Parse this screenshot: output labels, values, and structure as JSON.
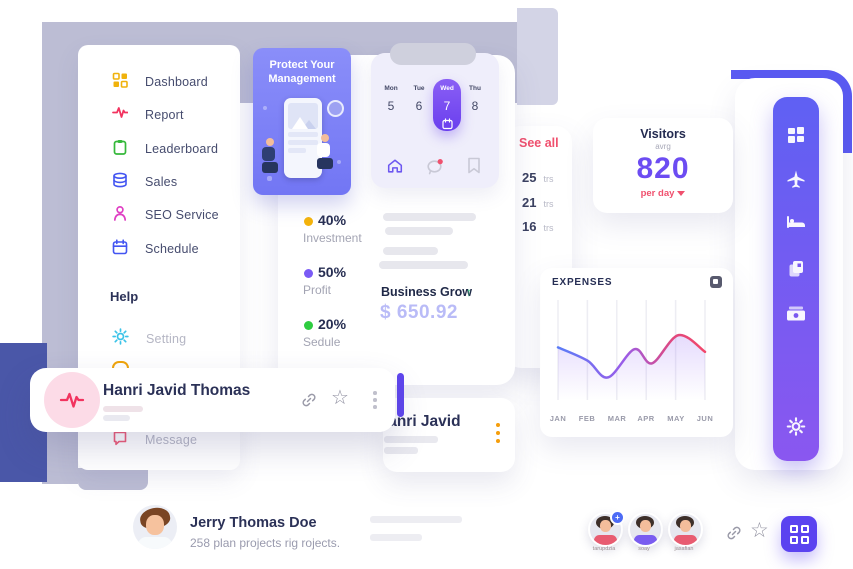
{
  "colors": {
    "accent_purple": "#6d4ef2",
    "toolbar_gradient_top": "#5f60f3",
    "toolbar_gradient_bottom": "#8a57f0",
    "promo_purple": "#8286f7",
    "red": "#f0506e",
    "navy": "#2b3157",
    "yellow": "#f5b40a",
    "green": "#2ecc40",
    "dark_blue_block": "#4a57a8",
    "background_blob": "#bcbdd4"
  },
  "icons": {
    "star_glyph": "☆",
    "plus_glyph": "+",
    "arrow_up_glyph": "↑"
  },
  "sidebar": {
    "items": [
      {
        "label": "Dashboard",
        "icon": "grid-icon",
        "color": "#f0b20c"
      },
      {
        "label": "Report",
        "icon": "pulse-icon",
        "color": "#f2335f"
      },
      {
        "label": "Leaderboard",
        "icon": "clipboard-icon",
        "color": "#35b83a"
      },
      {
        "label": "Sales",
        "icon": "database-icon",
        "color": "#4355f2"
      },
      {
        "label": "SEO Service",
        "icon": "user-icon",
        "color": "#df3fc3"
      },
      {
        "label": "Schedule",
        "icon": "calendar-icon",
        "color": "#4355f2"
      }
    ],
    "help_label": "Help",
    "help_items": [
      {
        "label": "Setting",
        "icon": "gear-icon",
        "color": "#3bc3e8"
      },
      {
        "label": "Message",
        "icon": "chat-square-icon",
        "color": "#ef5b77"
      }
    ]
  },
  "promo": {
    "title": "Protect Your Management"
  },
  "calendar": {
    "days": [
      {
        "name": "Mon",
        "date": "5",
        "active": false
      },
      {
        "name": "Tue",
        "date": "6",
        "active": false
      },
      {
        "name": "Wed",
        "date": "7",
        "active": true
      },
      {
        "name": "Thu",
        "date": "8",
        "active": false
      }
    ]
  },
  "stats": {
    "items": [
      {
        "value": "40%",
        "label": "Investment",
        "color": "#f5b40a"
      },
      {
        "value": "50%",
        "label": "Profit",
        "color": "#7a5bf5"
      },
      {
        "value": "20%",
        "label": "Sedule",
        "color": "#2ecc40"
      }
    ],
    "business": {
      "label": "Business Grow",
      "amount": "$ 650.92"
    }
  },
  "transactions": {
    "see_all_label": "See all",
    "rows": [
      {
        "value": "25",
        "unit": "trs"
      },
      {
        "value": "21",
        "unit": "trs"
      },
      {
        "value": "16",
        "unit": "trs"
      }
    ]
  },
  "visitors": {
    "title": "Visitors",
    "subtitle": "avrg",
    "value": "820",
    "per_label": "per day"
  },
  "chart_data": {
    "type": "line",
    "title": "EXPENSES",
    "x_labels": [
      "JAN",
      "FEB",
      "MAR",
      "APR",
      "MAY",
      "JUN"
    ],
    "points": [
      {
        "x": 0,
        "y": 62
      },
      {
        "x": 1,
        "y": 47
      },
      {
        "x": 1.7,
        "y": 28
      },
      {
        "x": 2.6,
        "y": 60
      },
      {
        "x": 3.2,
        "y": 44
      },
      {
        "x": 4.1,
        "y": 76
      },
      {
        "x": 5,
        "y": 57
      }
    ],
    "ylim": [
      0,
      100
    ],
    "grid": "vertical",
    "line_gradient": [
      "#5b7cf7",
      "#9a5ce8",
      "#f2476a"
    ]
  },
  "profile_card": {
    "name": "Hanri Javid Thomas"
  },
  "mini_card": {
    "name": "Hanri Javid"
  },
  "bottom": {
    "name": "Jerry Thomas Doe",
    "subtitle": "258 plan projects rig rojects.",
    "avatars": [
      {
        "label": "tarupdzia"
      },
      {
        "label": "soay"
      },
      {
        "label": "jasafian"
      }
    ]
  }
}
